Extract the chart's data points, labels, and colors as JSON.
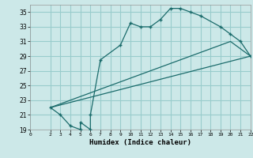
{
  "xlabel": "Humidex (Indice chaleur)",
  "background_color": "#cce8e8",
  "grid_color": "#99cccc",
  "line_color": "#1a6b6b",
  "xlim": [
    0,
    22
  ],
  "ylim": [
    19,
    36
  ],
  "xticks": [
    0,
    2,
    3,
    4,
    5,
    6,
    7,
    8,
    9,
    10,
    11,
    12,
    13,
    14,
    15,
    16,
    17,
    18,
    19,
    20,
    21,
    22
  ],
  "yticks": [
    19,
    21,
    23,
    25,
    27,
    29,
    31,
    33,
    35
  ],
  "line1_x": [
    2,
    3,
    4,
    5,
    5,
    6,
    6,
    7,
    9,
    10,
    11,
    12,
    13,
    14,
    15,
    16,
    17,
    19,
    20,
    21,
    22
  ],
  "line1_y": [
    22,
    21,
    19.5,
    19,
    20,
    19,
    21,
    28.5,
    30.5,
    33.5,
    33,
    33,
    34,
    35.5,
    35.5,
    35,
    34.5,
    33,
    32,
    31,
    29
  ],
  "line2_x": [
    2,
    22
  ],
  "line2_y": [
    22,
    29
  ],
  "line3_x": [
    2,
    20,
    22
  ],
  "line3_y": [
    22,
    31,
    29
  ]
}
